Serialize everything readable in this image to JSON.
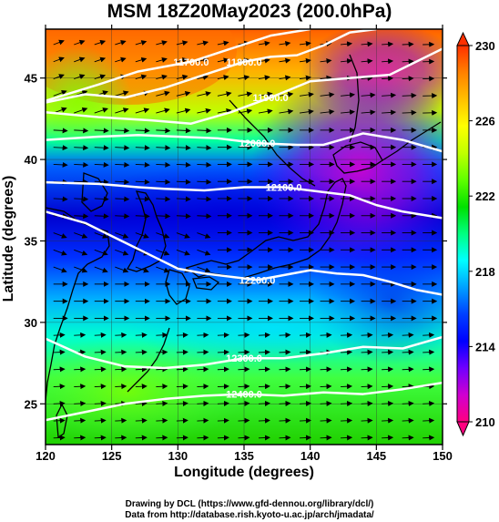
{
  "title": "MSM 18Z20May2023 (200.0hPa)",
  "x_axis": {
    "label": "Longitude (degrees)",
    "range": [
      120,
      150
    ],
    "ticks": [
      "120",
      "125",
      "130",
      "135",
      "140",
      "145",
      "150"
    ]
  },
  "y_axis": {
    "label": "Latitude  (degrees)",
    "range": [
      22.5,
      48
    ],
    "ticks": [
      "25",
      "30",
      "35",
      "40",
      "45"
    ]
  },
  "contours": [
    {
      "label": "11700.0",
      "points": [
        [
          120,
          43.6
        ],
        [
          124,
          44.6
        ],
        [
          127,
          45.4
        ],
        [
          131,
          46.0
        ],
        [
          134,
          46.8
        ],
        [
          137,
          47.6
        ],
        [
          140,
          48
        ]
      ]
    },
    {
      "label": "11800.0",
      "points": [
        [
          120,
          43.5
        ],
        [
          123,
          44.0
        ],
        [
          126,
          43.8
        ],
        [
          129,
          44.4
        ],
        [
          132,
          45.2
        ],
        [
          135,
          46.0
        ],
        [
          137,
          46.3
        ],
        [
          139,
          46.4
        ],
        [
          141,
          47.0
        ],
        [
          143,
          47.8
        ],
        [
          145,
          48
        ]
      ]
    },
    {
      "label": "11900.0",
      "points": [
        [
          120,
          42.9
        ],
        [
          124,
          42.6
        ],
        [
          128,
          42.4
        ],
        [
          131,
          42.2
        ],
        [
          134,
          42.9
        ],
        [
          137,
          43.8
        ],
        [
          140,
          44.8
        ],
        [
          143,
          45.0
        ],
        [
          146,
          45.2
        ],
        [
          150,
          46.8
        ]
      ]
    },
    {
      "label": "12000.0",
      "points": [
        [
          120,
          41.2
        ],
        [
          124,
          41.4
        ],
        [
          127,
          41.5
        ],
        [
          130,
          41.4
        ],
        [
          133,
          41.3
        ],
        [
          136,
          41.0
        ],
        [
          139,
          40.9
        ],
        [
          141,
          40.9
        ],
        [
          144,
          41.6
        ],
        [
          147,
          41.2
        ],
        [
          150,
          40.5
        ]
      ]
    },
    {
      "label": "12100.0",
      "points": [
        [
          120,
          38.6
        ],
        [
          124,
          38.5
        ],
        [
          127,
          38.3
        ],
        [
          129,
          38.2
        ],
        [
          132,
          38.1
        ],
        [
          135,
          38.3
        ],
        [
          138,
          38.3
        ],
        [
          141,
          38.0
        ],
        [
          143,
          37.8
        ],
        [
          145,
          37.2
        ],
        [
          147,
          36.8
        ],
        [
          150,
          36.4
        ]
      ]
    },
    {
      "label": "12200.0",
      "points": [
        [
          120,
          36.8
        ],
        [
          123,
          36.1
        ],
        [
          126,
          34.9
        ],
        [
          128,
          34.1
        ],
        [
          130,
          33.3
        ],
        [
          132,
          33.0
        ],
        [
          134,
          32.8
        ],
        [
          136,
          32.6
        ],
        [
          138,
          32.9
        ],
        [
          140,
          33.2
        ],
        [
          142,
          33.0
        ],
        [
          144,
          32.9
        ],
        [
          146,
          32.5
        ],
        [
          148,
          32.0
        ],
        [
          150,
          31.7
        ]
      ]
    },
    {
      "label": "12300.0",
      "points": [
        [
          120,
          29.0
        ],
        [
          123,
          27.9
        ],
        [
          126,
          27.3
        ],
        [
          129,
          27.2
        ],
        [
          132,
          27.4
        ],
        [
          135,
          27.8
        ],
        [
          138,
          27.8
        ],
        [
          141,
          28.1
        ],
        [
          144,
          28.5
        ],
        [
          147,
          28.4
        ],
        [
          150,
          29.1
        ]
      ]
    },
    {
      "label": "12400.0",
      "points": [
        [
          120,
          24.0
        ],
        [
          123,
          24.5
        ],
        [
          126,
          25.0
        ],
        [
          129,
          25.3
        ],
        [
          132,
          25.5
        ],
        [
          135,
          25.6
        ],
        [
          138,
          25.5
        ],
        [
          141,
          25.7
        ],
        [
          144,
          25.6
        ],
        [
          147,
          25.9
        ],
        [
          150,
          26.3
        ]
      ]
    }
  ],
  "colorbar": {
    "unit_range": [
      210,
      230
    ],
    "tick_labels": [
      "230",
      "226",
      "222",
      "218",
      "214",
      "210"
    ],
    "stops": [
      "#ff0080",
      "#d000d0",
      "#7000ff",
      "#0000ff",
      "#0040ff",
      "#00a0ff",
      "#00ffff",
      "#00ff80",
      "#00e000",
      "#60ff00",
      "#c0ff00",
      "#ffff00",
      "#ffc000",
      "#ff8000",
      "#ff3000"
    ]
  },
  "credits": {
    "line1": "Drawing by DCL (https://www.gfd-dennou.org/library/dcl/)",
    "line2": "Data from http://database.rish.kyoto-u.ac.jp/arch/jmadata/"
  }
}
